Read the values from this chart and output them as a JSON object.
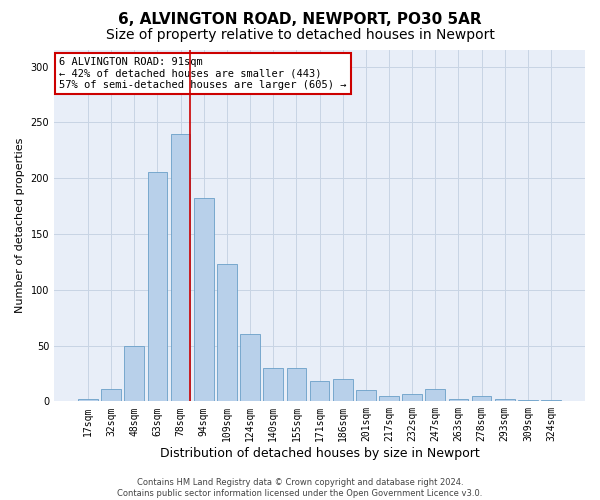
{
  "title1": "6, ALVINGTON ROAD, NEWPORT, PO30 5AR",
  "title2": "Size of property relative to detached houses in Newport",
  "xlabel": "Distribution of detached houses by size in Newport",
  "ylabel": "Number of detached properties",
  "categories": [
    "17sqm",
    "32sqm",
    "48sqm",
    "63sqm",
    "78sqm",
    "94sqm",
    "109sqm",
    "124sqm",
    "140sqm",
    "155sqm",
    "171sqm",
    "186sqm",
    "201sqm",
    "217sqm",
    "232sqm",
    "247sqm",
    "263sqm",
    "278sqm",
    "293sqm",
    "309sqm",
    "324sqm"
  ],
  "values": [
    2,
    11,
    50,
    206,
    240,
    182,
    123,
    60,
    30,
    30,
    18,
    20,
    10,
    5,
    7,
    11,
    2,
    5,
    2,
    1,
    1
  ],
  "bar_color": "#b8d0ea",
  "bar_edge_color": "#6a9fc8",
  "vline_color": "#cc0000",
  "vline_pos": 4.42,
  "annotation_box_text": "6 ALVINGTON ROAD: 91sqm\n← 42% of detached houses are smaller (443)\n57% of semi-detached houses are larger (605) →",
  "annotation_box_color": "#cc0000",
  "ylim": [
    0,
    315
  ],
  "yticks": [
    0,
    50,
    100,
    150,
    200,
    250,
    300
  ],
  "grid_color": "#c8d4e4",
  "background_color": "#e8eef8",
  "footer": "Contains HM Land Registry data © Crown copyright and database right 2024.\nContains public sector information licensed under the Open Government Licence v3.0.",
  "title_fontsize": 11,
  "subtitle_fontsize": 10,
  "tick_fontsize": 7,
  "ylabel_fontsize": 8,
  "xlabel_fontsize": 9
}
